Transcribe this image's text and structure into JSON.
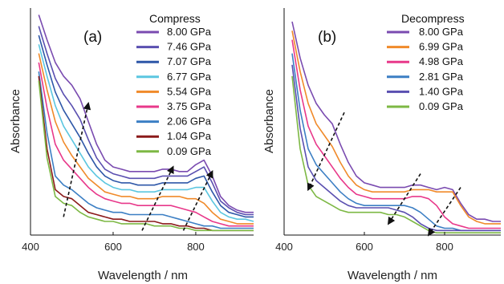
{
  "chart_data": [
    {
      "type": "line",
      "panel_label": "(a)",
      "legend_title": "Compress",
      "xlabel": "Wavelength / nm",
      "ylabel": "Absorbance",
      "xlim": [
        400,
        940
      ],
      "ylim": [
        0,
        1
      ],
      "xticks": [
        400,
        600,
        800
      ],
      "legend_position": "top-right",
      "series": [
        {
          "name": "8.00 GPa",
          "color": "#7a4bb0",
          "x": [
            420,
            440,
            460,
            480,
            500,
            520,
            540,
            560,
            580,
            600,
            620,
            640,
            660,
            680,
            700,
            720,
            740,
            760,
            780,
            800,
            820,
            840,
            860,
            880,
            900,
            920,
            940
          ],
          "y": [
            0.97,
            0.86,
            0.76,
            0.7,
            0.66,
            0.6,
            0.5,
            0.4,
            0.33,
            0.3,
            0.29,
            0.28,
            0.28,
            0.28,
            0.28,
            0.29,
            0.29,
            0.28,
            0.28,
            0.31,
            0.33,
            0.26,
            0.17,
            0.13,
            0.11,
            0.1,
            0.1
          ]
        },
        {
          "name": "7.46 GPa",
          "color": "#5a4fb0",
          "x": [
            420,
            440,
            460,
            480,
            500,
            520,
            540,
            560,
            580,
            600,
            620,
            640,
            660,
            680,
            700,
            720,
            740,
            760,
            780,
            800,
            820,
            840,
            860,
            880,
            900,
            920,
            940
          ],
          "y": [
            0.92,
            0.8,
            0.69,
            0.62,
            0.57,
            0.51,
            0.42,
            0.34,
            0.29,
            0.27,
            0.26,
            0.25,
            0.25,
            0.25,
            0.25,
            0.26,
            0.26,
            0.26,
            0.26,
            0.28,
            0.3,
            0.23,
            0.15,
            0.12,
            0.1,
            0.09,
            0.09
          ]
        },
        {
          "name": "7.07 GPa",
          "color": "#2e57a8",
          "x": [
            420,
            440,
            460,
            480,
            500,
            520,
            540,
            560,
            580,
            600,
            620,
            640,
            660,
            680,
            700,
            720,
            740,
            760,
            780,
            800,
            820,
            840,
            860,
            880,
            900,
            920,
            940
          ],
          "y": [
            0.88,
            0.75,
            0.63,
            0.55,
            0.49,
            0.43,
            0.36,
            0.3,
            0.26,
            0.24,
            0.23,
            0.23,
            0.22,
            0.22,
            0.22,
            0.23,
            0.23,
            0.23,
            0.23,
            0.25,
            0.26,
            0.19,
            0.13,
            0.1,
            0.09,
            0.08,
            0.08
          ]
        },
        {
          "name": "6.77 GPa",
          "color": "#5bc6e0",
          "x": [
            420,
            440,
            460,
            480,
            500,
            520,
            540,
            560,
            580,
            600,
            620,
            640,
            660,
            680,
            700,
            720,
            740,
            760,
            780,
            800,
            820,
            840,
            860,
            880,
            900,
            920,
            940
          ],
          "y": [
            0.84,
            0.7,
            0.57,
            0.48,
            0.42,
            0.36,
            0.3,
            0.26,
            0.23,
            0.21,
            0.2,
            0.2,
            0.19,
            0.19,
            0.19,
            0.2,
            0.2,
            0.2,
            0.2,
            0.21,
            0.21,
            0.15,
            0.1,
            0.08,
            0.07,
            0.07,
            0.06
          ]
        },
        {
          "name": "5.54 GPa",
          "color": "#f08a2a",
          "x": [
            420,
            440,
            460,
            480,
            500,
            520,
            540,
            560,
            580,
            600,
            620,
            640,
            660,
            680,
            700,
            720,
            740,
            760,
            780,
            800,
            820,
            840,
            860,
            880,
            900,
            920,
            940
          ],
          "y": [
            0.8,
            0.64,
            0.5,
            0.41,
            0.35,
            0.3,
            0.25,
            0.22,
            0.19,
            0.18,
            0.17,
            0.17,
            0.16,
            0.16,
            0.16,
            0.17,
            0.17,
            0.17,
            0.16,
            0.16,
            0.14,
            0.1,
            0.07,
            0.06,
            0.05,
            0.05,
            0.05
          ]
        },
        {
          "name": "3.75 GPa",
          "color": "#e8388a",
          "x": [
            420,
            440,
            460,
            480,
            500,
            520,
            540,
            560,
            580,
            600,
            620,
            640,
            660,
            680,
            700,
            720,
            740,
            760,
            780,
            800,
            820,
            840,
            860,
            880,
            900,
            920,
            940
          ],
          "y": [
            0.76,
            0.56,
            0.4,
            0.33,
            0.29,
            0.25,
            0.21,
            0.18,
            0.16,
            0.15,
            0.14,
            0.14,
            0.13,
            0.13,
            0.13,
            0.13,
            0.13,
            0.12,
            0.11,
            0.1,
            0.08,
            0.06,
            0.05,
            0.04,
            0.04,
            0.04,
            0.04
          ]
        },
        {
          "name": "2.06 GPa",
          "color": "#3c7fc4",
          "x": [
            420,
            440,
            460,
            480,
            500,
            520,
            540,
            560,
            580,
            600,
            620,
            640,
            660,
            680,
            700,
            720,
            740,
            760,
            780,
            800,
            820,
            840,
            860,
            880,
            900,
            920,
            940
          ],
          "y": [
            0.72,
            0.45,
            0.26,
            0.22,
            0.2,
            0.17,
            0.14,
            0.12,
            0.11,
            0.1,
            0.1,
            0.09,
            0.09,
            0.09,
            0.09,
            0.09,
            0.08,
            0.07,
            0.06,
            0.05,
            0.04,
            0.04,
            0.03,
            0.03,
            0.03,
            0.03,
            0.03
          ]
        },
        {
          "name": "1.04 GPa",
          "color": "#8b1a1a",
          "x": [
            420,
            440,
            460,
            480,
            500,
            520,
            540,
            560,
            580,
            600,
            620,
            640,
            660,
            680,
            700,
            720,
            740,
            760,
            780,
            800,
            820,
            840,
            860,
            880,
            900,
            920,
            940
          ],
          "y": [
            0.7,
            0.38,
            0.2,
            0.17,
            0.16,
            0.13,
            0.1,
            0.09,
            0.08,
            0.07,
            0.07,
            0.06,
            0.06,
            0.06,
            0.06,
            0.05,
            0.05,
            0.04,
            0.04,
            0.03,
            0.03,
            0.02,
            0.02,
            0.02,
            0.02,
            0.02,
            0.02
          ]
        },
        {
          "name": "0.09 GPa",
          "color": "#7db844",
          "x": [
            420,
            440,
            460,
            480,
            500,
            520,
            540,
            560,
            580,
            600,
            620,
            640,
            660,
            680,
            700,
            720,
            740,
            760,
            780,
            800,
            820,
            840,
            860,
            880,
            900,
            920,
            940
          ],
          "y": [
            0.68,
            0.34,
            0.17,
            0.14,
            0.13,
            0.1,
            0.08,
            0.07,
            0.06,
            0.06,
            0.05,
            0.05,
            0.05,
            0.05,
            0.04,
            0.04,
            0.04,
            0.03,
            0.03,
            0.02,
            0.02,
            0.02,
            0.02,
            0.02,
            0.02,
            0.02,
            0.02
          ]
        }
      ],
      "arrows": [
        {
          "from": [
            480,
            0.08
          ],
          "to": [
            540,
            0.58
          ]
        },
        {
          "from": [
            670,
            0.02
          ],
          "to": [
            745,
            0.3
          ]
        },
        {
          "from": [
            770,
            0.02
          ],
          "to": [
            840,
            0.28
          ]
        }
      ]
    },
    {
      "type": "line",
      "panel_label": "(b)",
      "legend_title": "Decompress",
      "xlabel": "Wavelength / nm",
      "ylabel": "Absorbance",
      "xlim": [
        400,
        940
      ],
      "ylim": [
        0,
        1
      ],
      "xticks": [
        400,
        600,
        800
      ],
      "legend_position": "top-right",
      "series": [
        {
          "name": "8.00 GPa",
          "color": "#7a4bb0",
          "x": [
            420,
            440,
            460,
            480,
            500,
            520,
            540,
            560,
            580,
            600,
            620,
            640,
            660,
            680,
            700,
            720,
            740,
            760,
            780,
            800,
            820,
            840,
            860,
            880,
            900,
            920,
            940
          ],
          "y": [
            0.94,
            0.78,
            0.66,
            0.58,
            0.53,
            0.49,
            0.4,
            0.32,
            0.26,
            0.23,
            0.22,
            0.21,
            0.21,
            0.21,
            0.21,
            0.22,
            0.22,
            0.21,
            0.2,
            0.21,
            0.2,
            0.14,
            0.09,
            0.07,
            0.07,
            0.06,
            0.06
          ]
        },
        {
          "name": "6.99 GPa",
          "color": "#f08a2a",
          "x": [
            420,
            440,
            460,
            480,
            500,
            520,
            540,
            560,
            580,
            600,
            620,
            640,
            660,
            680,
            700,
            720,
            740,
            760,
            780,
            800,
            820,
            840,
            860,
            880,
            900,
            920,
            940
          ],
          "y": [
            0.9,
            0.72,
            0.58,
            0.49,
            0.44,
            0.39,
            0.32,
            0.26,
            0.22,
            0.2,
            0.19,
            0.19,
            0.19,
            0.19,
            0.19,
            0.2,
            0.2,
            0.2,
            0.19,
            0.19,
            0.19,
            0.13,
            0.08,
            0.06,
            0.05,
            0.05,
            0.05
          ]
        },
        {
          "name": "4.98 GPa",
          "color": "#e8388a",
          "x": [
            420,
            440,
            460,
            480,
            500,
            520,
            540,
            560,
            580,
            600,
            620,
            640,
            660,
            680,
            700,
            720,
            740,
            760,
            780,
            800,
            820,
            840,
            860,
            880,
            900,
            920,
            940
          ],
          "y": [
            0.86,
            0.64,
            0.48,
            0.4,
            0.35,
            0.3,
            0.25,
            0.21,
            0.18,
            0.17,
            0.16,
            0.16,
            0.16,
            0.16,
            0.16,
            0.17,
            0.17,
            0.16,
            0.13,
            0.08,
            0.05,
            0.04,
            0.03,
            0.03,
            0.03,
            0.03,
            0.03
          ]
        },
        {
          "name": "2.81 GPa",
          "color": "#3c7fc4",
          "x": [
            420,
            440,
            460,
            480,
            500,
            520,
            540,
            560,
            580,
            600,
            620,
            640,
            660,
            680,
            700,
            720,
            740,
            760,
            780,
            800,
            820,
            840,
            860,
            880,
            900,
            920,
            940
          ],
          "y": [
            0.8,
            0.55,
            0.38,
            0.31,
            0.27,
            0.23,
            0.19,
            0.16,
            0.14,
            0.13,
            0.13,
            0.13,
            0.13,
            0.13,
            0.13,
            0.12,
            0.1,
            0.07,
            0.04,
            0.03,
            0.03,
            0.02,
            0.02,
            0.02,
            0.02,
            0.02,
            0.02
          ]
        },
        {
          "name": "1.40 GPa",
          "color": "#5a4fb0",
          "x": [
            420,
            440,
            460,
            480,
            500,
            520,
            540,
            560,
            580,
            600,
            620,
            640,
            660,
            680,
            700,
            720,
            740,
            760,
            780,
            800,
            820,
            840,
            860,
            880,
            900,
            920,
            940
          ],
          "y": [
            0.75,
            0.47,
            0.3,
            0.24,
            0.21,
            0.18,
            0.15,
            0.13,
            0.12,
            0.12,
            0.12,
            0.12,
            0.12,
            0.11,
            0.1,
            0.08,
            0.05,
            0.03,
            0.02,
            0.02,
            0.02,
            0.02,
            0.02,
            0.02,
            0.02,
            0.02,
            0.02
          ]
        },
        {
          "name": "0.09 GPa",
          "color": "#7db844",
          "x": [
            420,
            440,
            460,
            480,
            500,
            520,
            540,
            560,
            580,
            600,
            620,
            640,
            660,
            680,
            700,
            720,
            740,
            760,
            780,
            800,
            820,
            840,
            860,
            880,
            900,
            920,
            940
          ],
          "y": [
            0.7,
            0.38,
            0.22,
            0.17,
            0.15,
            0.13,
            0.11,
            0.1,
            0.1,
            0.1,
            0.1,
            0.1,
            0.09,
            0.09,
            0.08,
            0.06,
            0.04,
            0.02,
            0.01,
            0.01,
            0.01,
            0.01,
            0.01,
            0.01,
            0.01,
            0.01,
            0.01
          ]
        }
      ],
      "arrows": [
        {
          "from": [
            550,
            0.54
          ],
          "to": [
            460,
            0.2
          ]
        },
        {
          "from": [
            740,
            0.27
          ],
          "to": [
            660,
            0.05
          ]
        },
        {
          "from": [
            840,
            0.21
          ],
          "to": [
            760,
            0.0
          ]
        }
      ]
    }
  ]
}
